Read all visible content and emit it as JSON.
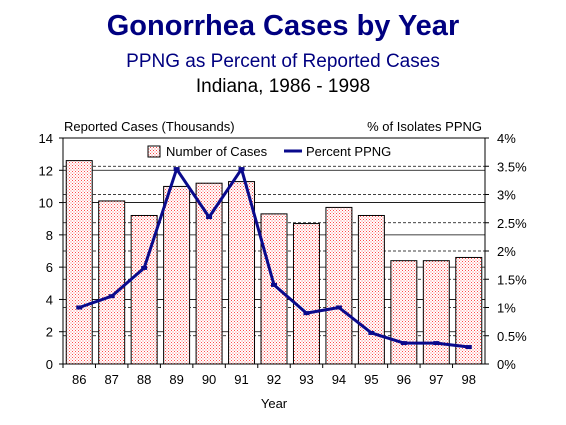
{
  "title": "Gonorrhea Cases by Year",
  "subtitle": "PPNG as Percent of Reported Cases",
  "subtitle2": "Indiana, 1986 - 1998",
  "colors": {
    "title": "#000080",
    "line": "#0a0a8c",
    "bar_border": "#000000",
    "bar_dots": "#ff4a4a"
  },
  "chart_data": {
    "type": "bar+line",
    "categories": [
      "86",
      "87",
      "88",
      "89",
      "90",
      "91",
      "92",
      "93",
      "94",
      "95",
      "96",
      "97",
      "98"
    ],
    "xlabel": "Year",
    "ylabel_left": "Reported Cases (Thousands)",
    "ylabel_right": "% of Isolates PPNG",
    "ylim_left": [
      0,
      14
    ],
    "yticks_left": [
      "0",
      "2",
      "4",
      "6",
      "8",
      "10",
      "12",
      "14"
    ],
    "ylim_right": [
      0,
      4
    ],
    "yticks_right": [
      "0%",
      "0.5%",
      "1%",
      "1.5%",
      "2%",
      "2.5%",
      "3%",
      "3.5%",
      "4%"
    ],
    "legend_position": "top",
    "series": [
      {
        "name": "Number of Cases",
        "type": "bar",
        "values": [
          12.6,
          10.1,
          9.2,
          11.0,
          11.2,
          11.3,
          9.3,
          8.7,
          9.7,
          9.2,
          6.4,
          6.4,
          6.6
        ]
      },
      {
        "name": "Percent PPNG",
        "type": "line",
        "values": [
          1.0,
          1.2,
          1.7,
          3.45,
          2.6,
          3.45,
          1.4,
          0.9,
          1.0,
          0.55,
          0.37,
          0.37,
          0.3
        ]
      }
    ]
  }
}
